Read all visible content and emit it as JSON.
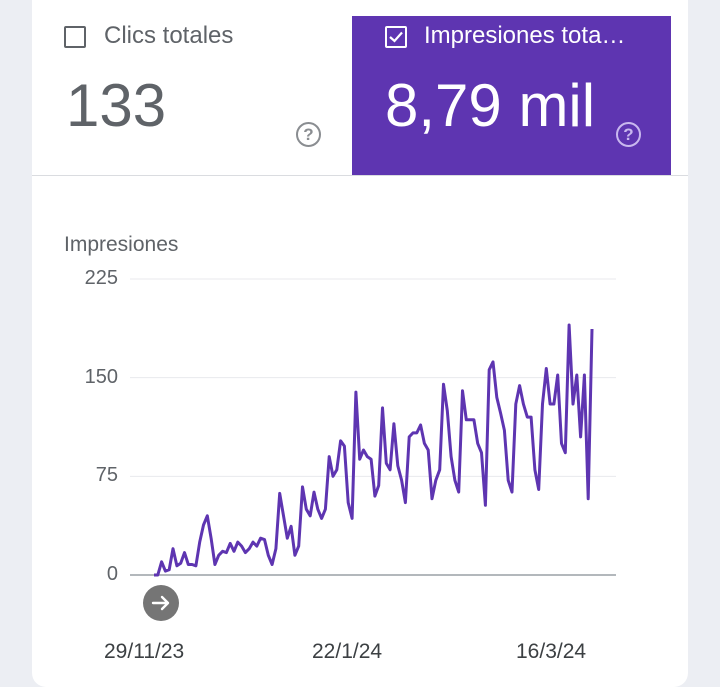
{
  "metrics": {
    "clicks": {
      "label": "Clics totales",
      "value": "133",
      "checked": false
    },
    "impressions": {
      "label": "Impresiones tota…",
      "value": "8,79 mil",
      "checked": true
    },
    "help_glyph": "?"
  },
  "colors": {
    "accent": "#5e35b1",
    "line": "#5e35b1",
    "text": "#5f6368"
  },
  "icons": [
    "checkbox-unchecked-icon",
    "checkbox-checked-icon",
    "help-icon",
    "arrow-right-icon"
  ],
  "chart_data": {
    "type": "line",
    "title": "Impresiones",
    "ylabel": "",
    "xlabel": "",
    "ylim": [
      0,
      225
    ],
    "y_ticks": [
      "225",
      "150",
      "75",
      "0"
    ],
    "x_ticks": [
      "29/11/23",
      "22/1/24",
      "16/3/24"
    ],
    "grid": true,
    "series": [
      {
        "values": [
          0,
          0,
          10,
          3,
          4,
          20,
          7,
          9,
          17,
          8,
          8,
          7,
          25,
          38,
          45,
          28,
          8,
          15,
          18,
          17,
          24,
          18,
          25,
          22,
          17,
          20,
          25,
          22,
          28,
          27,
          15,
          8,
          20,
          62,
          45,
          28,
          37,
          15,
          22,
          67,
          50,
          45,
          63,
          50,
          43,
          50,
          90,
          75,
          80,
          102,
          98,
          55,
          43,
          139,
          88,
          95,
          90,
          88,
          60,
          68,
          127,
          85,
          80,
          115,
          83,
          72,
          55,
          105,
          108,
          108,
          114,
          100,
          95,
          58,
          72,
          80,
          145,
          125,
          90,
          72,
          63,
          140,
          118,
          118,
          118,
          100,
          93,
          53,
          156,
          162,
          135,
          123,
          110,
          72,
          63,
          130,
          144,
          130,
          120,
          120,
          80,
          65,
          130,
          157,
          130,
          130,
          152,
          100,
          93,
          190,
          130,
          152,
          105,
          152,
          58,
          187
        ]
      }
    ]
  }
}
